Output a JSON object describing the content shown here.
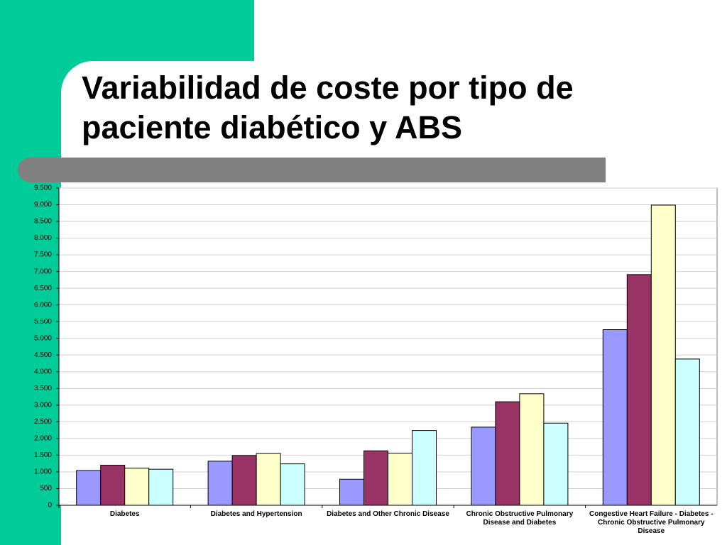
{
  "chart_data": {
    "type": "bar",
    "title": "Variabilidad de coste por tipo de paciente diabético y ABS",
    "categories": [
      "Diabetes",
      "Diabetes and Hypertension",
      "Diabetes and Other Chronic Disease",
      "Chronic Obstructive Pulmonary Disease and Diabetes",
      "Congestive Heart Failure - Diabetes - Chronic Obstructive Pulmonary Disease"
    ],
    "series": [
      {
        "color": "#9999ff",
        "values": [
          1040,
          1320,
          780,
          2340,
          5260
        ]
      },
      {
        "color": "#993366",
        "values": [
          1200,
          1490,
          1630,
          3100,
          6910
        ]
      },
      {
        "color": "#ffffcc",
        "values": [
          1110,
          1550,
          1560,
          3340,
          8990
        ]
      },
      {
        "color": "#ccffff",
        "values": [
          1080,
          1240,
          2240,
          2460,
          4380
        ]
      }
    ],
    "ylim": [
      0,
      9500
    ],
    "yticks": [
      0,
      500,
      {
        "value": 1000,
        "label": "1.000"
      },
      {
        "value": 1500,
        "label": "1.500"
      },
      {
        "value": 2000,
        "label": "2.000"
      },
      {
        "value": 2500,
        "label": "2.500"
      },
      {
        "value": 3000,
        "label": "3.000"
      },
      {
        "value": 3500,
        "label": "3.500"
      },
      {
        "value": 4000,
        "label": "4.000"
      },
      {
        "value": 4500,
        "label": "4.500"
      },
      {
        "value": 5000,
        "label": "5.000"
      },
      {
        "value": 5500,
        "label": "5.500"
      },
      {
        "value": 6000,
        "label": "6.000"
      },
      {
        "value": 6500,
        "label": "6.500"
      },
      {
        "value": 7000,
        "label": "7.000"
      },
      {
        "value": 7500,
        "label": "7.500"
      },
      {
        "value": 8000,
        "label": "8.000"
      },
      {
        "value": 8500,
        "label": "8.500"
      },
      {
        "value": 9000,
        "label": "9.000"
      },
      {
        "value": 9500,
        "label": "9.500"
      }
    ],
    "grid": true
  }
}
